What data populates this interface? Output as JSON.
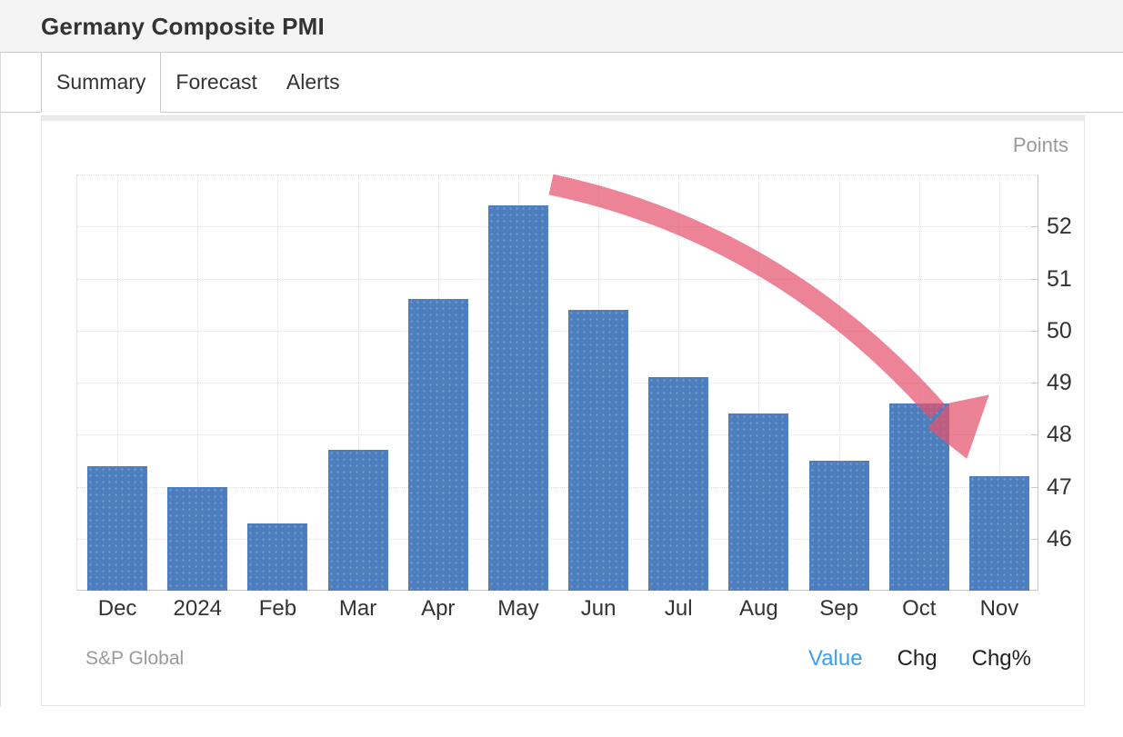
{
  "header": {
    "title": "Germany Composite PMI"
  },
  "tabs": [
    {
      "label": "Summary",
      "active": true
    },
    {
      "label": "Forecast",
      "active": false
    },
    {
      "label": "Alerts",
      "active": false
    }
  ],
  "chart_data": {
    "type": "bar",
    "title": "Germany Composite PMI",
    "y_axis_title": "Points",
    "categories": [
      "Dec",
      "2024",
      "Feb",
      "Mar",
      "Apr",
      "May",
      "Jun",
      "Jul",
      "Aug",
      "Sep",
      "Oct",
      "Nov"
    ],
    "values": [
      47.4,
      47.0,
      46.3,
      47.7,
      50.6,
      52.4,
      50.4,
      49.1,
      48.4,
      47.5,
      48.6,
      47.2
    ],
    "yticks": [
      46,
      47,
      48,
      49,
      50,
      51,
      52
    ],
    "ylim": [
      45,
      53
    ],
    "grid": "dotted",
    "legend": "none",
    "bar_color": "#4d7ebe",
    "annotation": {
      "type": "arrow",
      "description": "thick pink arrow curving downward from May peak toward Nov, indicating declining trend",
      "color": "#e5536f",
      "opacity": 0.72
    },
    "source": "S&P Global"
  },
  "footer": {
    "source": "S&P Global",
    "series_buttons": [
      {
        "label": "Value",
        "active": true
      },
      {
        "label": "Chg",
        "active": false
      },
      {
        "label": "Chg%",
        "active": false
      }
    ],
    "active_color": "#3b9ff0"
  }
}
